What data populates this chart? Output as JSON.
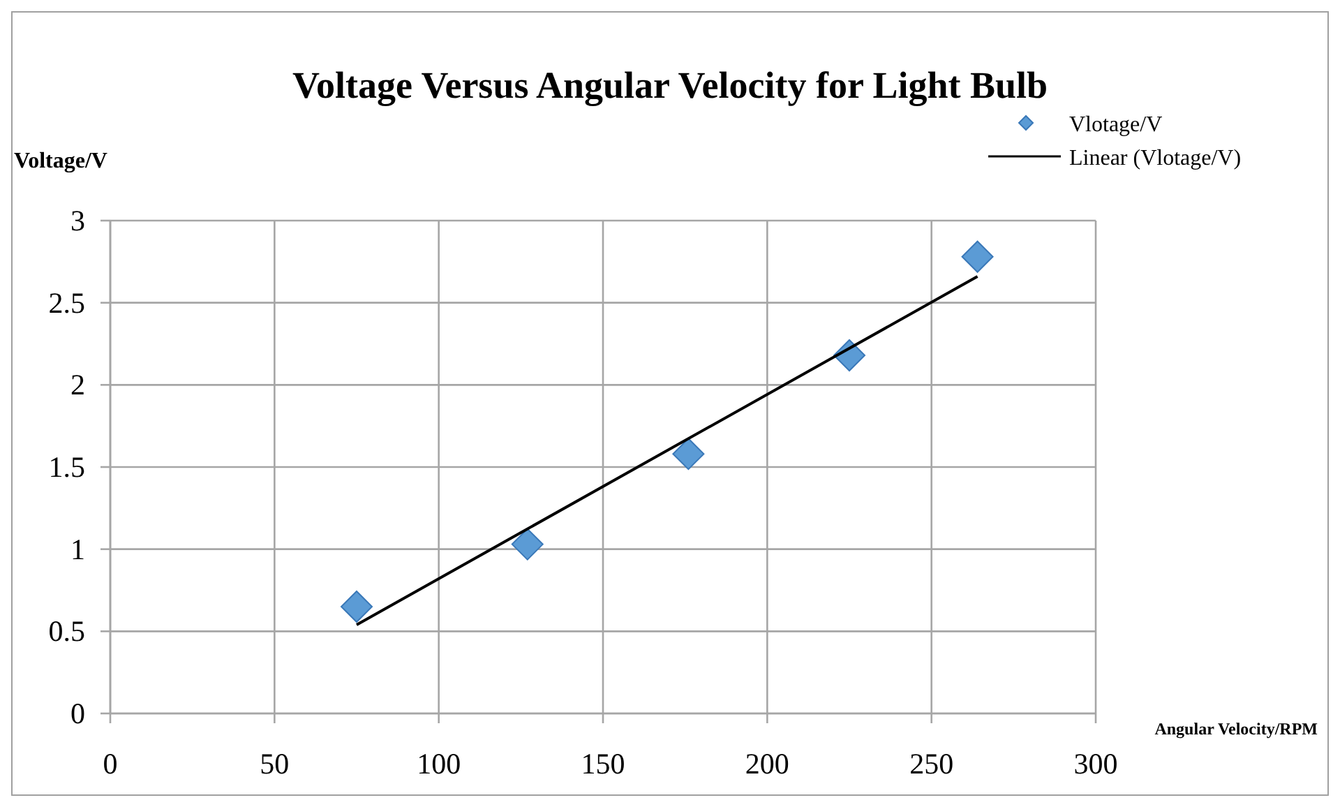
{
  "chart_data": {
    "type": "scatter",
    "title": "Voltage Versus Angular Velocity for Light Bulb",
    "xlabel": "Angular Velocity/RPM",
    "ylabel": "Voltage/V",
    "x": [
      75,
      127,
      176,
      225,
      264
    ],
    "series": [
      {
        "name": "Vlotage/V",
        "color": "#5b9bd5",
        "values": [
          0.65,
          1.03,
          1.58,
          2.18,
          2.78
        ],
        "marker": "diamond"
      },
      {
        "name": "Linear (Vlotage/V)",
        "type": "line",
        "color": "#000000",
        "x": [
          75,
          264
        ],
        "values": [
          0.54,
          2.66
        ]
      }
    ],
    "xlim": [
      0,
      300
    ],
    "xticks": [
      0,
      50,
      100,
      150,
      200,
      250,
      300
    ],
    "ylim": [
      0,
      3
    ],
    "yticks": [
      0,
      0.5,
      1,
      1.5,
      2,
      2.5,
      3
    ],
    "grid": true,
    "legend": "top right"
  }
}
